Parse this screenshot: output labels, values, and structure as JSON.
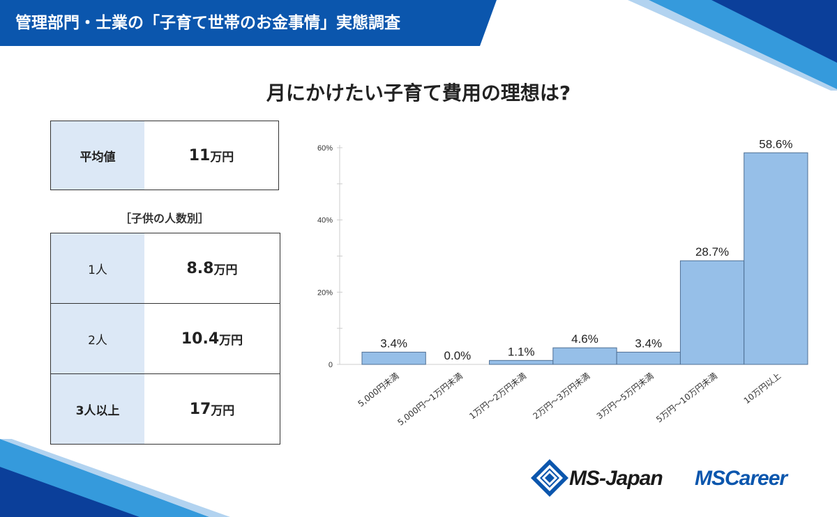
{
  "header": {
    "title": "管理部門・士業の「子育て世帯のお金事情」実態調査"
  },
  "page_title": "月にかけたい子育て費用の理想は?",
  "average": {
    "label": "平均値",
    "value": "11",
    "unit": "万円"
  },
  "children_section": {
    "label": "［子供の人数別］"
  },
  "children_rows": [
    {
      "label": "1人",
      "value": "8.8",
      "unit": "万円"
    },
    {
      "label": "2人",
      "value": "10.4",
      "unit": "万円"
    },
    {
      "label": "3人以上",
      "value": "17",
      "unit": "万円"
    }
  ],
  "logos": {
    "ms_japan": "MS-Japan",
    "ms_career": "MSCareer"
  },
  "colors": {
    "banner": "#0b56ad",
    "bar_fill": "#96bfe8",
    "bar_stroke": "#4f6f94",
    "label_bg": "#dce8f6"
  },
  "chart_data": {
    "type": "bar",
    "title": "月にかけたい子育て費用の理想は?",
    "categories": [
      "5,000円未満",
      "5,000円〜1万円未満",
      "1万円〜2万円未満",
      "2万円〜3万円未満",
      "3万円〜5万円未満",
      "5万円〜10万円未満",
      "10万円以上"
    ],
    "values": [
      3.4,
      0.0,
      1.1,
      4.6,
      3.4,
      28.7,
      58.6
    ],
    "value_labels": [
      "3.4%",
      "0.0%",
      "1.1%",
      "4.6%",
      "3.4%",
      "28.7%",
      "58.6%"
    ],
    "ylim": [
      0,
      60
    ],
    "yticks": [
      0,
      20,
      40,
      60
    ],
    "ytick_labels": [
      "0",
      "20%",
      "40%",
      "60%"
    ],
    "xlabel": "",
    "ylabel": ""
  }
}
